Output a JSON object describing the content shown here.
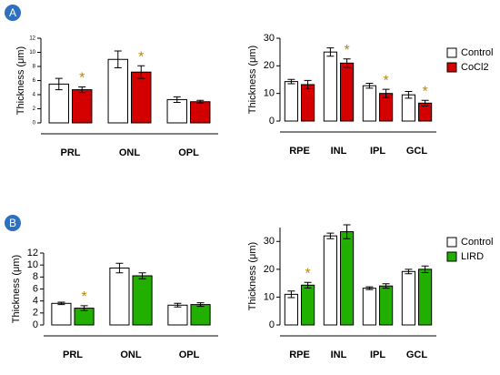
{
  "chart_data": [
    {
      "type": "bar",
      "panel_label": "A",
      "y_label": "Thickness (μm)",
      "categories": [
        "PRL",
        "ONL",
        "OPL"
      ],
      "series": [
        {
          "color": "#ffffff",
          "values": [
            5.5,
            9.0,
            3.3
          ],
          "errors": [
            0.8,
            1.2,
            0.4
          ]
        },
        {
          "color": "#d40000",
          "values": [
            4.7,
            7.2,
            3.0
          ],
          "errors": [
            0.4,
            0.9,
            0.2
          ]
        }
      ],
      "annotations": [
        {
          "text": "*",
          "series": 1,
          "category": 0
        },
        {
          "text": "*",
          "series": 1,
          "category": 1
        }
      ],
      "ylim": [
        0,
        12
      ],
      "yticks": [
        0,
        2,
        4,
        6,
        8,
        10,
        12
      ],
      "legend": false
    },
    {
      "type": "bar",
      "y_label": "Thickness (μm)",
      "categories": [
        "RPE",
        "INL",
        "IPL",
        "GCL"
      ],
      "series": [
        {
          "name": "Control",
          "color": "#ffffff",
          "values": [
            14.3,
            25.0,
            12.8,
            9.5
          ],
          "errors": [
            0.8,
            1.5,
            0.9,
            1.2
          ]
        },
        {
          "name": "CoCl2",
          "color": "#d40000",
          "values": [
            13.2,
            21.0,
            10.0,
            6.5
          ],
          "errors": [
            1.5,
            1.5,
            1.5,
            1.0
          ]
        }
      ],
      "annotations": [
        {
          "text": "*",
          "series": 1,
          "category": 1
        },
        {
          "text": "*",
          "series": 1,
          "category": 2
        },
        {
          "text": "*",
          "series": 1,
          "category": 3
        }
      ],
      "ylim": [
        0,
        30
      ],
      "yticks": [
        0,
        10,
        20,
        30
      ],
      "legend": true
    },
    {
      "type": "bar",
      "panel_label": "B",
      "y_label": "Thickness (μm)",
      "categories": [
        "PRL",
        "ONL",
        "OPL"
      ],
      "series": [
        {
          "color": "#ffffff",
          "values": [
            3.6,
            9.5,
            3.3
          ],
          "errors": [
            0.2,
            0.8,
            0.3
          ]
        },
        {
          "color": "#22b000",
          "values": [
            2.8,
            8.2,
            3.4
          ],
          "errors": [
            0.4,
            0.5,
            0.3
          ]
        }
      ],
      "annotations": [
        {
          "text": "*",
          "series": 1,
          "category": 0
        }
      ],
      "ylim": [
        0,
        12
      ],
      "yticks": [
        0,
        2,
        4,
        6,
        8,
        10,
        12
      ],
      "legend": false
    },
    {
      "type": "bar",
      "y_label": "Thickness (μm)",
      "categories": [
        "RPE",
        "INL",
        "IPL",
        "GCL"
      ],
      "series": [
        {
          "name": "Control",
          "color": "#ffffff",
          "values": [
            11.0,
            32.0,
            13.2,
            19.2
          ],
          "errors": [
            1.2,
            1.0,
            0.5,
            0.8
          ]
        },
        {
          "name": "LIRD",
          "color": "#22b000",
          "values": [
            14.3,
            33.5,
            14.0,
            20.0
          ],
          "errors": [
            1.0,
            2.5,
            0.8,
            1.2
          ]
        }
      ],
      "annotations": [
        {
          "text": "*",
          "series": 1,
          "category": 0
        }
      ],
      "ylim": [
        0,
        35
      ],
      "yticks": [
        0,
        10,
        20,
        30
      ],
      "legend": true
    }
  ]
}
